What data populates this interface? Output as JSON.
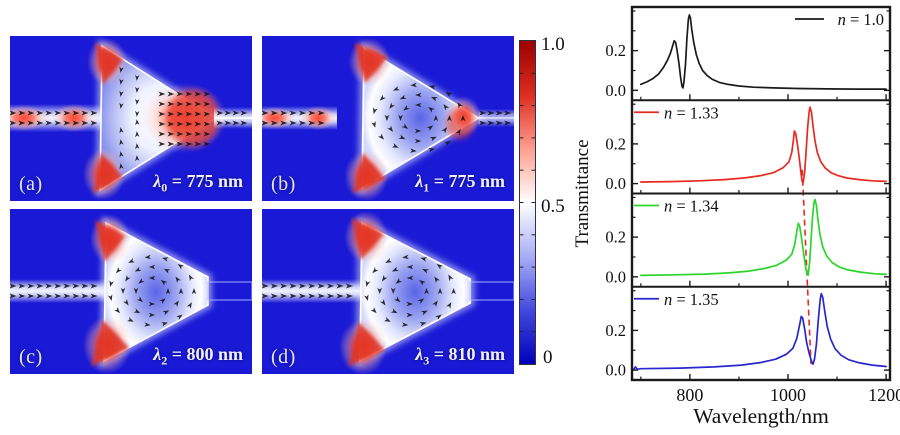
{
  "figure": {
    "field_colors": {
      "background": "#1a1ad6",
      "hot_spot": "#e8301f",
      "cavity_light": "#eef1ff"
    },
    "panels": [
      {
        "tag": "(a)",
        "lambda": "λ",
        "sub": "0",
        "rest": " = 775 nm"
      },
      {
        "tag": "(b)",
        "lambda": "λ",
        "sub": "1",
        "rest": " = 775 nm"
      },
      {
        "tag": "(c)",
        "lambda": "λ",
        "sub": "2",
        "rest": " = 800 nm"
      },
      {
        "tag": "(d)",
        "lambda": "λ",
        "sub": "3",
        "rest": " = 810 nm"
      }
    ],
    "colorbar": {
      "labels": [
        "1.0",
        "0.5",
        "0"
      ],
      "colors": [
        "#9c0000",
        "#dd2c20",
        "#ff9e8e",
        "#ffffff",
        "#a8adf6",
        "#4349dd",
        "#0000bb"
      ]
    }
  },
  "chart_data": {
    "type": "line",
    "title": "",
    "xlabel": "Wavelength/nm",
    "ylabel": "Transmittance",
    "xlim": [
      682,
      1208
    ],
    "x_major_ticks": [
      800,
      1000,
      1200
    ],
    "x_tick_labels": [
      "800",
      "1000",
      "1200"
    ],
    "x_minor_ticks": [
      700,
      900,
      1100
    ],
    "ylim": [
      -0.05,
      0.42
    ],
    "y_major_ticks": [
      0.0,
      0.2
    ],
    "y_tick_labels": [
      "0.0",
      "0.2"
    ],
    "y_minor_ticks": [
      0.1,
      0.3,
      0.4
    ],
    "grid": false,
    "legend_position": "inside-panels",
    "dashed_guide": {
      "color": "#e8291f",
      "x_start": 1029,
      "start_panel": 1,
      "start_value": 0.07,
      "x_end": 1047,
      "end_panel": 3,
      "end_value": 0.03
    },
    "panels": [
      {
        "legend": "n = 1.0",
        "color": "#1a1a1a",
        "legend_pos": "top-right",
        "series": [
          [
            700,
            0.03
          ],
          [
            712,
            0.042
          ],
          [
            724,
            0.058
          ],
          [
            736,
            0.082
          ],
          [
            746,
            0.115
          ],
          [
            754,
            0.15
          ],
          [
            760,
            0.185
          ],
          [
            765,
            0.225
          ],
          [
            768,
            0.25
          ],
          [
            771,
            0.24
          ],
          [
            774,
            0.2
          ],
          [
            778,
            0.13
          ],
          [
            781,
            0.065
          ],
          [
            784,
            0.02
          ],
          [
            786,
            0.012
          ],
          [
            788,
            0.045
          ],
          [
            791,
            0.13
          ],
          [
            794,
            0.26
          ],
          [
            797,
            0.36
          ],
          [
            799,
            0.38
          ],
          [
            801,
            0.365
          ],
          [
            804,
            0.305
          ],
          [
            808,
            0.24
          ],
          [
            813,
            0.18
          ],
          [
            819,
            0.135
          ],
          [
            826,
            0.1
          ],
          [
            835,
            0.075
          ],
          [
            846,
            0.055
          ],
          [
            860,
            0.04
          ],
          [
            878,
            0.03
          ],
          [
            900,
            0.022
          ],
          [
            930,
            0.016
          ],
          [
            970,
            0.012
          ],
          [
            1020,
            0.009
          ],
          [
            1080,
            0.007
          ],
          [
            1140,
            0.006
          ],
          [
            1200,
            0.006
          ]
        ]
      },
      {
        "legend": "n = 1.33",
        "color": "#e8291f",
        "legend_pos": "top-left",
        "series": [
          [
            700,
            0.008
          ],
          [
            760,
            0.01
          ],
          [
            820,
            0.014
          ],
          [
            870,
            0.02
          ],
          [
            910,
            0.028
          ],
          [
            945,
            0.04
          ],
          [
            970,
            0.055
          ],
          [
            990,
            0.08
          ],
          [
            1002,
            0.11
          ],
          [
            1008,
            0.16
          ],
          [
            1011,
            0.22
          ],
          [
            1013,
            0.265
          ],
          [
            1016,
            0.25
          ],
          [
            1020,
            0.185
          ],
          [
            1024,
            0.11
          ],
          [
            1027,
            0.045
          ],
          [
            1029,
            0.01
          ],
          [
            1031,
            0.005
          ],
          [
            1034,
            0.06
          ],
          [
            1037,
            0.16
          ],
          [
            1040,
            0.28
          ],
          [
            1043,
            0.36
          ],
          [
            1045,
            0.385
          ],
          [
            1048,
            0.36
          ],
          [
            1051,
            0.29
          ],
          [
            1055,
            0.215
          ],
          [
            1060,
            0.155
          ],
          [
            1067,
            0.11
          ],
          [
            1076,
            0.078
          ],
          [
            1088,
            0.055
          ],
          [
            1102,
            0.04
          ],
          [
            1120,
            0.028
          ],
          [
            1145,
            0.02
          ],
          [
            1172,
            0.014
          ],
          [
            1200,
            0.011
          ]
        ]
      },
      {
        "legend": "n = 1.34",
        "color": "#2bd52b",
        "legend_pos": "top-left",
        "series": [
          [
            700,
            0.007
          ],
          [
            770,
            0.01
          ],
          [
            830,
            0.014
          ],
          [
            880,
            0.02
          ],
          [
            920,
            0.029
          ],
          [
            952,
            0.042
          ],
          [
            977,
            0.058
          ],
          [
            997,
            0.085
          ],
          [
            1008,
            0.115
          ],
          [
            1014,
            0.165
          ],
          [
            1018,
            0.23
          ],
          [
            1021,
            0.27
          ],
          [
            1024,
            0.255
          ],
          [
            1028,
            0.19
          ],
          [
            1032,
            0.115
          ],
          [
            1036,
            0.05
          ],
          [
            1039,
            0.012
          ],
          [
            1041,
            0.008
          ],
          [
            1044,
            0.07
          ],
          [
            1047,
            0.18
          ],
          [
            1050,
            0.3
          ],
          [
            1053,
            0.375
          ],
          [
            1055,
            0.39
          ],
          [
            1058,
            0.36
          ],
          [
            1061,
            0.29
          ],
          [
            1065,
            0.215
          ],
          [
            1071,
            0.15
          ],
          [
            1079,
            0.105
          ],
          [
            1090,
            0.072
          ],
          [
            1104,
            0.05
          ],
          [
            1122,
            0.035
          ],
          [
            1148,
            0.024
          ],
          [
            1175,
            0.016
          ],
          [
            1200,
            0.012
          ]
        ]
      },
      {
        "legend": "n = 1.35",
        "color": "#2827cf",
        "legend_pos": "top-left",
        "series": [
          [
            685,
            0.002
          ],
          [
            689,
            0.016
          ],
          [
            693,
            0.004
          ],
          [
            700,
            0.007
          ],
          [
            780,
            0.01
          ],
          [
            850,
            0.016
          ],
          [
            905,
            0.025
          ],
          [
            945,
            0.038
          ],
          [
            975,
            0.055
          ],
          [
            997,
            0.08
          ],
          [
            1010,
            0.11
          ],
          [
            1018,
            0.16
          ],
          [
            1024,
            0.23
          ],
          [
            1027,
            0.27
          ],
          [
            1030,
            0.262
          ],
          [
            1034,
            0.205
          ],
          [
            1038,
            0.14
          ],
          [
            1043,
            0.085
          ],
          [
            1048,
            0.045
          ],
          [
            1051,
            0.03
          ],
          [
            1054,
            0.055
          ],
          [
            1058,
            0.13
          ],
          [
            1062,
            0.26
          ],
          [
            1066,
            0.36
          ],
          [
            1068,
            0.385
          ],
          [
            1071,
            0.365
          ],
          [
            1075,
            0.295
          ],
          [
            1080,
            0.22
          ],
          [
            1087,
            0.155
          ],
          [
            1096,
            0.108
          ],
          [
            1108,
            0.075
          ],
          [
            1124,
            0.052
          ],
          [
            1146,
            0.036
          ],
          [
            1172,
            0.025
          ],
          [
            1200,
            0.018
          ]
        ]
      }
    ]
  }
}
